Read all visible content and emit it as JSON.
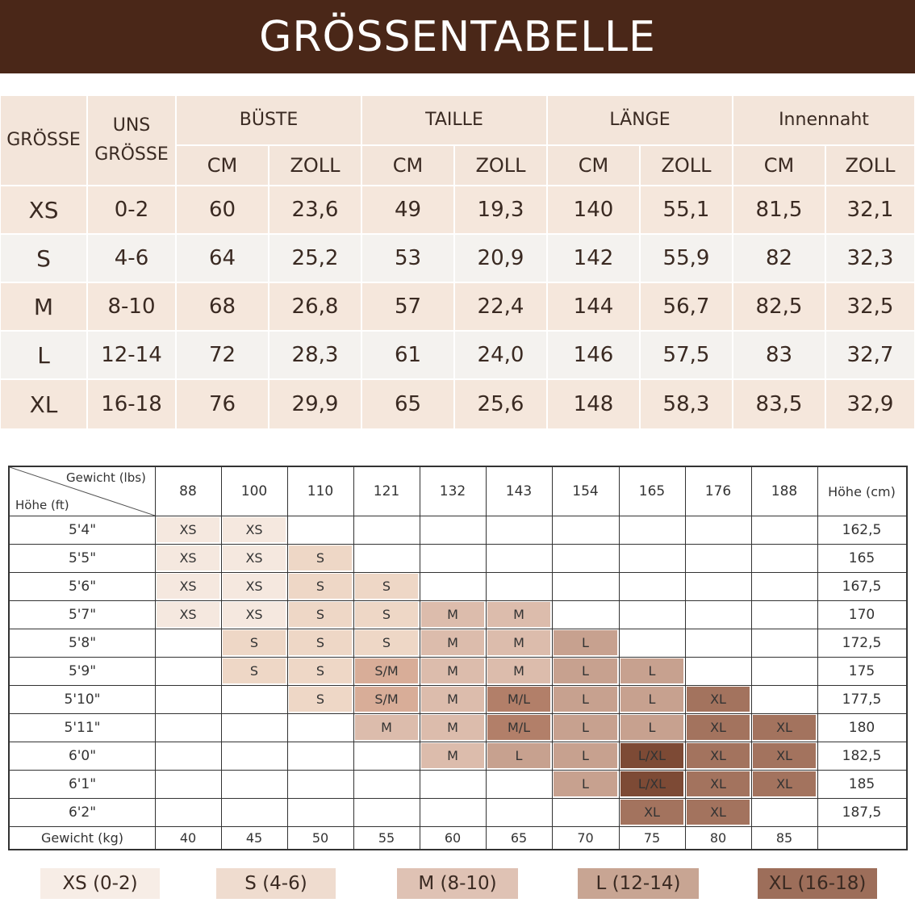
{
  "header": {
    "title": "GRÖSSENTABELLE"
  },
  "size_table": {
    "headers": {
      "size": "GRÖSSE",
      "us_size_line1": "UNS",
      "us_size_line2": "GRÖSSE",
      "groups": [
        "BÜSTE",
        "TAILLE",
        "LÄNGE",
        "Innennaht"
      ],
      "units": [
        "CM",
        "ZOLL",
        "CM",
        "ZOLL",
        "CM",
        "ZOLL",
        "CM",
        "ZOLL"
      ]
    },
    "rows": [
      {
        "size": "XS",
        "us": "0-2",
        "values": [
          "60",
          "23,6",
          "49",
          "19,3",
          "140",
          "55,1",
          "81,5",
          "32,1"
        ]
      },
      {
        "size": "S",
        "us": "4-6",
        "values": [
          "64",
          "25,2",
          "53",
          "20,9",
          "142",
          "55,9",
          "82",
          "32,3"
        ]
      },
      {
        "size": "M",
        "us": "8-10",
        "values": [
          "68",
          "26,8",
          "57",
          "22,4",
          "144",
          "56,7",
          "82,5",
          "32,5"
        ]
      },
      {
        "size": "L",
        "us": "12-14",
        "values": [
          "72",
          "28,3",
          "61",
          "24,0",
          "146",
          "57,5",
          "83",
          "32,7"
        ]
      },
      {
        "size": "XL",
        "us": "16-18",
        "values": [
          "76",
          "29,9",
          "65",
          "25,6",
          "148",
          "58,3",
          "83,5",
          "32,9"
        ]
      }
    ]
  },
  "fit_chart": {
    "corner_weight": "Gewicht (lbs)",
    "corner_height": "Höhe (ft)",
    "height_cm_header": "Höhe (cm)",
    "weights_lbs": [
      "88",
      "100",
      "110",
      "121",
      "132",
      "143",
      "154",
      "165",
      "176",
      "188"
    ],
    "weight_kg_label": "Gewicht (kg)",
    "weights_kg": [
      "40",
      "45",
      "50",
      "55",
      "60",
      "65",
      "70",
      "75",
      "80",
      "85"
    ],
    "rows": [
      {
        "ft": "5'4\"",
        "cm": "162,5",
        "cells": [
          "XS",
          "XS",
          "",
          "",
          "",
          "",
          "",
          "",
          "",
          ""
        ]
      },
      {
        "ft": "5'5\"",
        "cm": "165",
        "cells": [
          "XS",
          "XS",
          "S",
          "",
          "",
          "",
          "",
          "",
          "",
          ""
        ]
      },
      {
        "ft": "5'6\"",
        "cm": "167,5",
        "cells": [
          "XS",
          "XS",
          "S",
          "S",
          "",
          "",
          "",
          "",
          "",
          ""
        ]
      },
      {
        "ft": "5'7\"",
        "cm": "170",
        "cells": [
          "XS",
          "XS",
          "S",
          "S",
          "M",
          "M",
          "",
          "",
          "",
          ""
        ]
      },
      {
        "ft": "5'8\"",
        "cm": "172,5",
        "cells": [
          "",
          "S",
          "S",
          "S",
          "M",
          "M",
          "L",
          "",
          "",
          ""
        ]
      },
      {
        "ft": "5'9\"",
        "cm": "175",
        "cells": [
          "",
          "S",
          "S",
          "S/M",
          "M",
          "M",
          "L",
          "L",
          "",
          ""
        ]
      },
      {
        "ft": "5'10\"",
        "cm": "177,5",
        "cells": [
          "",
          "",
          "S",
          "S/M",
          "M",
          "M/L",
          "L",
          "L",
          "XL",
          ""
        ]
      },
      {
        "ft": "5'11\"",
        "cm": "180",
        "cells": [
          "",
          "",
          "",
          "M",
          "M",
          "M/L",
          "L",
          "L",
          "XL",
          "XL"
        ]
      },
      {
        "ft": "6'0\"",
        "cm": "182,5",
        "cells": [
          "",
          "",
          "",
          "",
          "M",
          "L",
          "L",
          "L/XL",
          "XL",
          "XL"
        ]
      },
      {
        "ft": "6'1\"",
        "cm": "185",
        "cells": [
          "",
          "",
          "",
          "",
          "",
          "",
          "L",
          "L/XL",
          "XL",
          "XL"
        ]
      },
      {
        "ft": "6'2\"",
        "cm": "187,5",
        "cells": [
          "",
          "",
          "",
          "",
          "",
          "",
          "",
          "XL",
          "XL",
          ""
        ]
      }
    ],
    "colors": {
      "XS": "#f5e8df",
      "S": "#eed7c6",
      "S/M": "#d8ad98",
      "M": "#dcbcac",
      "M/L": "#b27f69",
      "L": "#c7a18f",
      "L/XL": "#7d4a35",
      "XL": "#a3735e"
    }
  },
  "legend": [
    {
      "label": "XS (0-2)",
      "color": "#f7ede6"
    },
    {
      "label": "S (4-6)",
      "color": "#efdccf"
    },
    {
      "label": "M (8-10)",
      "color": "#dfc2b4"
    },
    {
      "label": "L (12-14)",
      "color": "#c8a593"
    },
    {
      "label": "XL (16-18)",
      "color": "#9d6e5a"
    }
  ]
}
